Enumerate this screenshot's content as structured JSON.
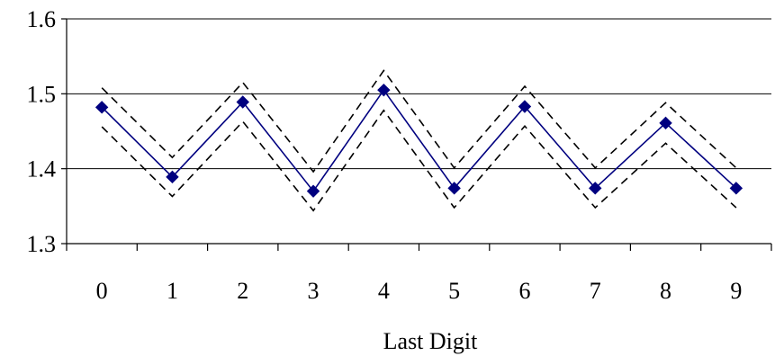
{
  "chart_data": {
    "type": "line",
    "title": "",
    "xlabel": "Last Digit",
    "ylabel": "",
    "categories": [
      "0",
      "1",
      "2",
      "3",
      "4",
      "5",
      "6",
      "7",
      "8",
      "9"
    ],
    "ylim": [
      1.3,
      1.6
    ],
    "yticks": [
      "1.3",
      "1.4",
      "1.5",
      "1.6"
    ],
    "grid": true,
    "legend": "none",
    "series": [
      {
        "role": "estimate",
        "color": "#000080",
        "marker": "diamond",
        "style": "solid",
        "values": [
          1.482,
          1.389,
          1.489,
          1.37,
          1.505,
          1.374,
          1.483,
          1.374,
          1.461,
          1.374
        ]
      },
      {
        "role": "upper-bound",
        "color": "#000000",
        "style": "dashed",
        "values": [
          1.508,
          1.415,
          1.515,
          1.396,
          1.531,
          1.401,
          1.51,
          1.401,
          1.488,
          1.401
        ]
      },
      {
        "role": "lower-bound",
        "color": "#000000",
        "style": "dashed",
        "values": [
          1.456,
          1.363,
          1.463,
          1.344,
          1.478,
          1.348,
          1.457,
          1.348,
          1.434,
          1.348
        ]
      }
    ]
  }
}
